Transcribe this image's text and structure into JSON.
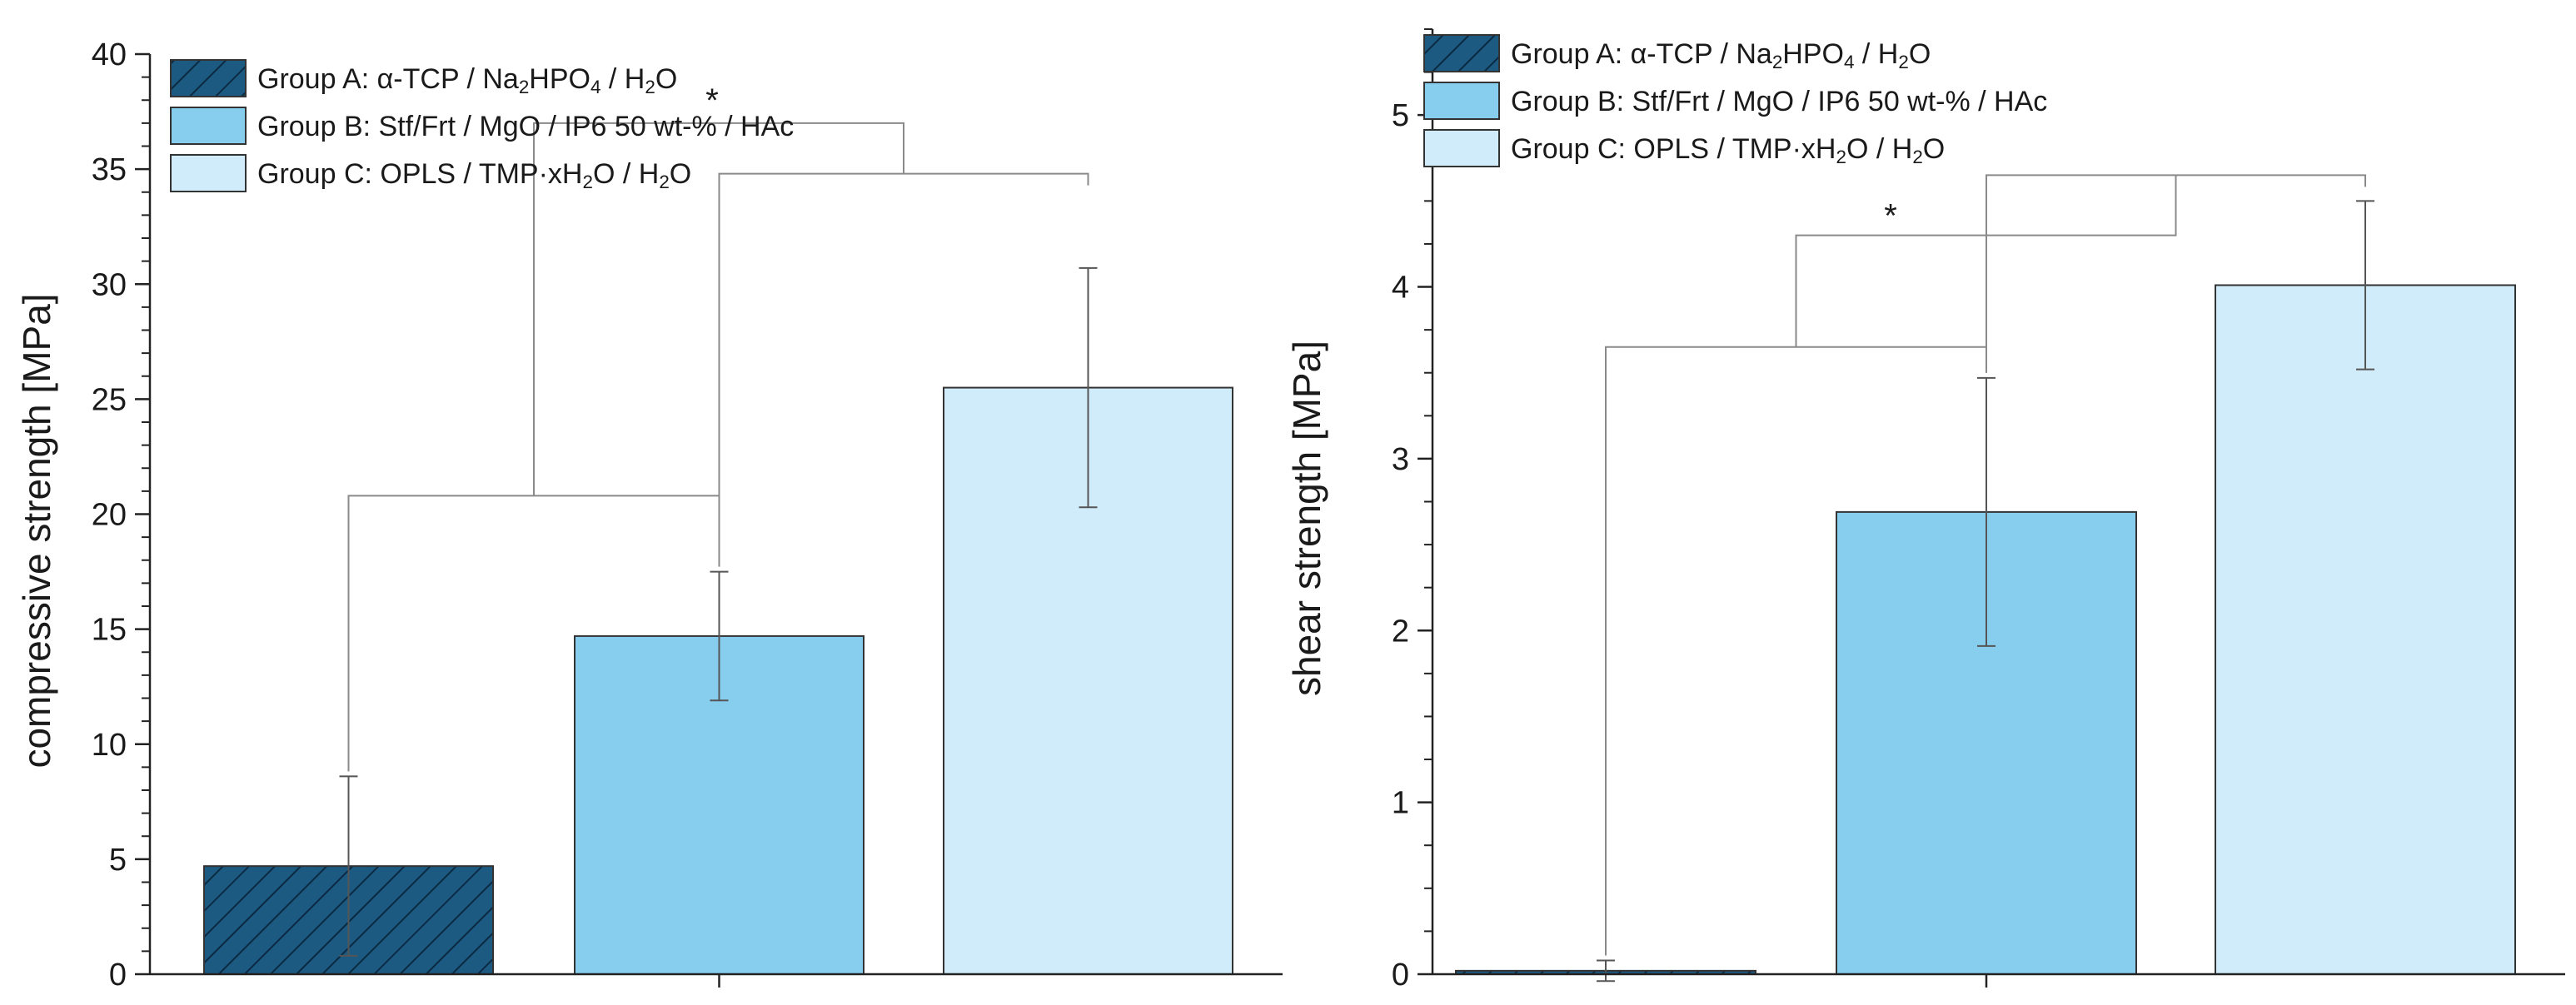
{
  "colors": {
    "group_a": "#1c5a82",
    "group_a_hatch": "#0b2a42",
    "group_b": "#86cdee",
    "group_c": "#d0ecfb",
    "edge": "#333333",
    "bracket": "#8a8a8a",
    "errorbar": "#555555"
  },
  "legend": [
    {
      "group": "Group A: ",
      "formula": [
        {
          "t": "α-TCP / Na"
        },
        {
          "t": "2",
          "sub": true
        },
        {
          "t": "HPO"
        },
        {
          "t": "4",
          "sub": true
        },
        {
          "t": " / H"
        },
        {
          "t": "2",
          "sub": true
        },
        {
          "t": "O"
        }
      ],
      "fill_key": "group_a",
      "hatch": true
    },
    {
      "group": "Group B: ",
      "formula": [
        {
          "t": "Stf/Frt / MgO / IP6 50 wt-% / HAc"
        }
      ],
      "fill_key": "group_b",
      "hatch": false
    },
    {
      "group": "Group C: ",
      "formula": [
        {
          "t": "OPLS / TMP·xH"
        },
        {
          "t": "2",
          "sub": true
        },
        {
          "t": "O / H"
        },
        {
          "t": "2",
          "sub": true
        },
        {
          "t": "O"
        }
      ],
      "fill_key": "group_c",
      "hatch": false
    }
  ],
  "chart_data": [
    {
      "type": "bar",
      "title": "",
      "xlabel": "",
      "ylabel": "compressive strength [MPa]",
      "ylim": [
        0,
        40
      ],
      "yticks": [
        0,
        5,
        10,
        15,
        20,
        25,
        30,
        35,
        40
      ],
      "minor_step": 1,
      "grid": false,
      "legend_position": "top-left",
      "categories": [
        "Group A",
        "Group B",
        "Group C"
      ],
      "values": [
        4.7,
        14.7,
        25.5
      ],
      "errors": [
        3.9,
        2.8,
        5.2
      ],
      "significance": [
        {
          "label": "*",
          "between": [
            "Group A+B",
            "Group B+C"
          ]
        }
      ]
    },
    {
      "type": "bar",
      "title": "",
      "xlabel": "",
      "ylabel": "shear strength [MPa]",
      "ylim": [
        0,
        5.5
      ],
      "yticks": [
        0,
        1,
        2,
        3,
        4,
        5
      ],
      "minor_step": 0.25,
      "grid": false,
      "legend_position": "top-left",
      "categories": [
        "Group A",
        "Group B",
        "Group C"
      ],
      "values": [
        0.02,
        2.69,
        4.01
      ],
      "errors": [
        0.06,
        0.78,
        0.49
      ],
      "significance": [
        {
          "label": "*",
          "between": [
            "Group A+B",
            "Group B+C"
          ]
        }
      ]
    }
  ]
}
